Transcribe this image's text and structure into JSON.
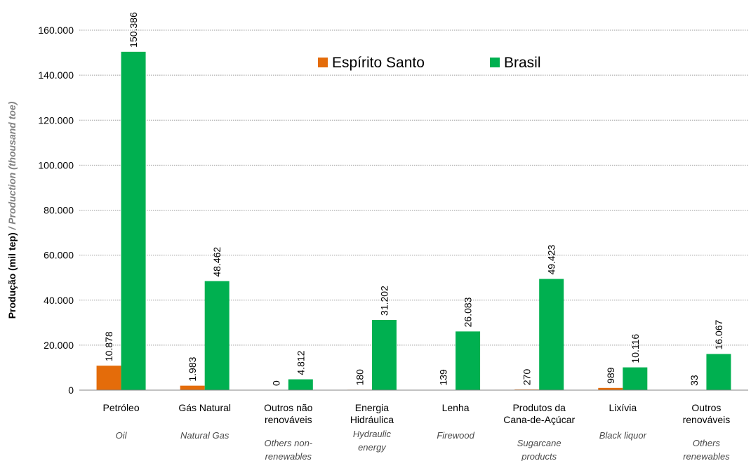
{
  "chart_data": {
    "type": "bar",
    "ylabel": "Produção (mil tep)",
    "ylabel_en": " / Production (thousand toe)",
    "ylim": [
      0,
      160000
    ],
    "yticks": [
      0,
      20000,
      40000,
      60000,
      80000,
      100000,
      120000,
      140000,
      160000
    ],
    "ytick_labels": [
      "0",
      "20.000",
      "40.000",
      "60.000",
      "80.000",
      "100.000",
      "120.000",
      "140.000",
      "160.000"
    ],
    "grid": true,
    "legend_position": "top-right",
    "categories": [
      {
        "pt": [
          "Petróleo"
        ],
        "en": [
          "Oil"
        ]
      },
      {
        "pt": [
          "Gás Natural"
        ],
        "en": [
          "Natural Gas"
        ]
      },
      {
        "pt": [
          "Outros não",
          "renováveis"
        ],
        "en": [
          "Others non-",
          "renewables"
        ]
      },
      {
        "pt": [
          "Energia",
          "Hidráulica"
        ],
        "en": [
          "Hydraulic",
          "energy"
        ]
      },
      {
        "pt": [
          "Lenha"
        ],
        "en": [
          "Firewood"
        ]
      },
      {
        "pt": [
          "Produtos da",
          "Cana-de-Açúcar"
        ],
        "en": [
          "Sugarcane",
          "products"
        ]
      },
      {
        "pt": [
          "Lixívia"
        ],
        "en": [
          "Black liquor"
        ]
      },
      {
        "pt": [
          "Outros",
          "renováveis"
        ],
        "en": [
          "Others",
          "renewables"
        ]
      }
    ],
    "series": [
      {
        "name": "Espírito Santo",
        "color": "#e46c0a",
        "values": [
          10878,
          1983,
          0,
          180,
          139,
          270,
          989,
          33
        ],
        "labels": [
          "10.878",
          "1.983",
          "0",
          "180",
          "139",
          "270",
          "989",
          "33"
        ]
      },
      {
        "name": "Brasil",
        "color": "#00b050",
        "values": [
          150386,
          48462,
          4812,
          31202,
          26083,
          49423,
          10116,
          16067
        ],
        "labels": [
          "150.386",
          "48.462",
          "4.812",
          "31.202",
          "26.083",
          "49.423",
          "10.116",
          "16.067"
        ]
      }
    ]
  }
}
